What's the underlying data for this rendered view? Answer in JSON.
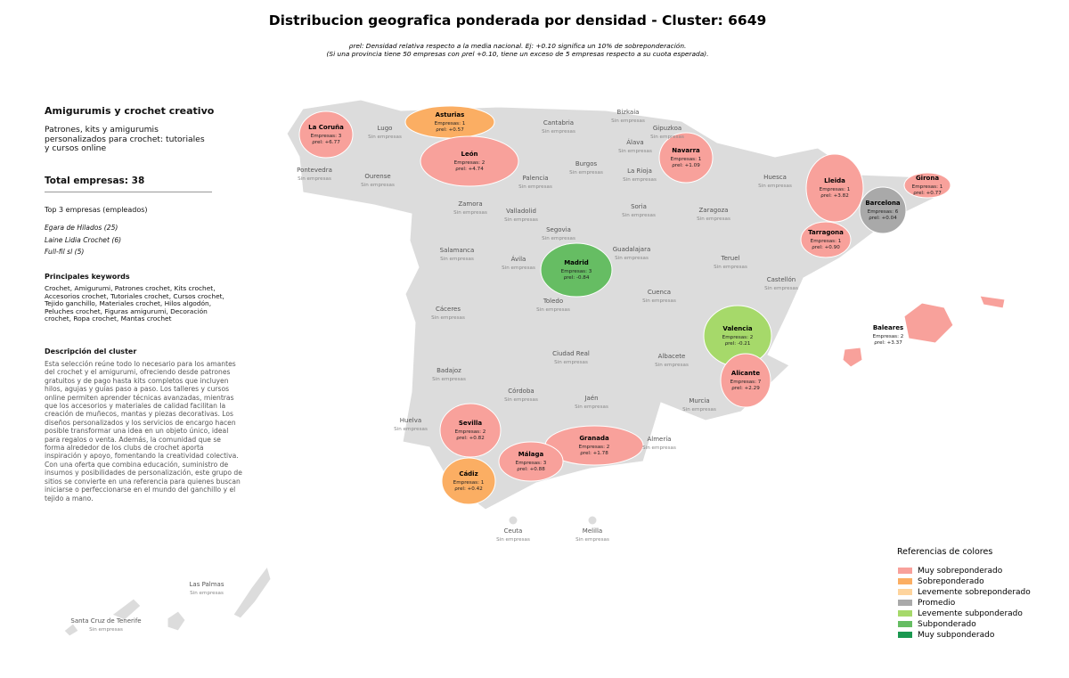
{
  "header": {
    "title": "Distribucion geografica ponderada por densidad - Cluster: 6649",
    "subtitle_lines": [
      "ρrel: Densidad relativa respecto a la media nacional. Ej: +0.10 significa un 10% de sobreponderación.",
      "(Si una provincia tiene 50 empresas con ρrel +0.10, tiene un exceso de 5 empresas respecto a su cuota esperada)."
    ]
  },
  "sidebar": {
    "cluster_name": "Amigurumis y crochet creativo",
    "cluster_summary": "Patrones, kits y amigurumis personalizados para crochet: tutoriales y cursos online",
    "total": "Total empresas: 38",
    "top_heading": "Top 3 empresas (empleados)",
    "top_companies": [
      "Egara de Hilados (25)",
      "Laine Lidia Crochet (6)",
      "Full-fil sl (5)"
    ],
    "keywords_heading": "Principales keywords",
    "keywords": "Crochet, Amigurumi, Patrones crochet, Kits crochet, Accesorios crochet, Tutoriales crochet, Cursos crochet, Tejido ganchillo, Materiales crochet, Hilos algodón, Peluches crochet, Figuras amigurumi, Decoración crochet, Ropa crochet, Mantas crochet",
    "description_heading": "Descripción del cluster",
    "description": "Esta selección reúne todo lo necesario para los amantes del crochet y el amigurumi, ofreciendo desde patrones gratuitos y de pago hasta kits completos que incluyen hilos, agujas y guías paso a paso. Los talleres y cursos online permiten aprender técnicas avanzadas, mientras que los accesorios y materiales de calidad facilitan la creación de muñecos, mantas y piezas decorativas. Los diseños personalizados y los servicios de encargo hacen posible transformar una idea en un objeto único, ideal para regalos o venta. Además, la comunidad que se forma alrededor de los clubs de crochet aporta inspiración y apoyo, fomentando la creatividad colectiva. Con una oferta que combina educación, suministro de insumos y posibilidades de personalización, este grupo de sitios se convierte en una referencia para quienes buscan iniciarse o perfeccionarse en el mundo del ganchillo y el tejido a mano."
  },
  "provinces": [
    {
      "name": "La Coruña",
      "companies": "Empresas: 3",
      "rho": "ρrel: +6.77",
      "color": "#f8a19b"
    },
    {
      "name": "Lugo",
      "companies": "Sin empresas"
    },
    {
      "name": "Asturias",
      "companies": "Empresas: 1",
      "rho": "ρrel: +0.57",
      "color": "#fbae63"
    },
    {
      "name": "Cantabria",
      "companies": "Sin empresas"
    },
    {
      "name": "Bizkaia",
      "companies": "Sin empresas"
    },
    {
      "name": "Gipuzkoa",
      "companies": "Sin empresas"
    },
    {
      "name": "Álava",
      "companies": "Sin empresas"
    },
    {
      "name": "Navarra",
      "companies": "Empresas: 1",
      "rho": "ρrel: +1.09",
      "color": "#f8a19b"
    },
    {
      "name": "Pontevedra",
      "companies": "Sin empresas"
    },
    {
      "name": "Ourense",
      "companies": "Sin empresas"
    },
    {
      "name": "León",
      "companies": "Empresas: 2",
      "rho": "ρrel: +4.74",
      "color": "#f8a19b"
    },
    {
      "name": "Palencia",
      "companies": "Sin empresas"
    },
    {
      "name": "Burgos",
      "companies": "Sin empresas"
    },
    {
      "name": "La Rioja",
      "companies": "Sin empresas"
    },
    {
      "name": "Huesca",
      "companies": "Sin empresas"
    },
    {
      "name": "Lleida",
      "companies": "Empresas: 1",
      "rho": "ρrel: +3.82",
      "color": "#f8a19b"
    },
    {
      "name": "Girona",
      "companies": "Empresas: 1",
      "rho": "ρrel: +0.77",
      "color": "#f8a19b"
    },
    {
      "name": "Barcelona",
      "companies": "Empresas: 6",
      "rho": "ρrel: +0.04",
      "color": "#a9a9a9"
    },
    {
      "name": "Tarragona",
      "companies": "Empresas: 1",
      "rho": "ρrel: +0.90",
      "color": "#f8a19b"
    },
    {
      "name": "Zamora",
      "companies": "Sin empresas"
    },
    {
      "name": "Valladolid",
      "companies": "Sin empresas"
    },
    {
      "name": "Soria",
      "companies": "Sin empresas"
    },
    {
      "name": "Zaragoza",
      "companies": "Sin empresas"
    },
    {
      "name": "Segovia",
      "companies": "Sin empresas"
    },
    {
      "name": "Salamanca",
      "companies": "Sin empresas"
    },
    {
      "name": "Ávila",
      "companies": "Sin empresas"
    },
    {
      "name": "Madrid",
      "companies": "Empresas: 3",
      "rho": "ρrel: -0.84",
      "color": "#66bd63"
    },
    {
      "name": "Guadalajara",
      "companies": "Sin empresas"
    },
    {
      "name": "Teruel",
      "companies": "Sin empresas"
    },
    {
      "name": "Castellón",
      "companies": "Sin empresas"
    },
    {
      "name": "Cuenca",
      "companies": "Sin empresas"
    },
    {
      "name": "Cáceres",
      "companies": "Sin empresas"
    },
    {
      "name": "Toledo",
      "companies": "Sin empresas"
    },
    {
      "name": "Valencia",
      "companies": "Empresas: 2",
      "rho": "ρrel: -0.21",
      "color": "#a6d96a"
    },
    {
      "name": "Baleares",
      "companies": "Empresas: 2",
      "rho": "ρrel: +3.37",
      "color": "#f8a19b"
    },
    {
      "name": "Ciudad Real",
      "companies": "Sin empresas"
    },
    {
      "name": "Albacete",
      "companies": "Sin empresas"
    },
    {
      "name": "Badajoz",
      "companies": "Sin empresas"
    },
    {
      "name": "Alicante",
      "companies": "Empresas: 7",
      "rho": "ρrel: +2.29",
      "color": "#f8a19b"
    },
    {
      "name": "Córdoba",
      "companies": "Sin empresas"
    },
    {
      "name": "Jaén",
      "companies": "Sin empresas"
    },
    {
      "name": "Murcia",
      "companies": "Sin empresas"
    },
    {
      "name": "Huelva",
      "companies": "Sin empresas"
    },
    {
      "name": "Sevilla",
      "companies": "Empresas: 2",
      "rho": "ρrel: +0.82",
      "color": "#f8a19b"
    },
    {
      "name": "Granada",
      "companies": "Empresas: 2",
      "rho": "ρrel: +1.78",
      "color": "#f8a19b"
    },
    {
      "name": "Almería",
      "companies": "Sin empresas"
    },
    {
      "name": "Málaga",
      "companies": "Empresas: 3",
      "rho": "ρrel: +0.88",
      "color": "#f8a19b"
    },
    {
      "name": "Cádiz",
      "companies": "Empresas: 1",
      "rho": "ρrel: +0.42",
      "color": "#fbae63"
    },
    {
      "name": "Ceuta",
      "companies": "Sin empresas"
    },
    {
      "name": "Melilla",
      "companies": "Sin empresas"
    },
    {
      "name": "Las Palmas",
      "companies": "Sin empresas"
    },
    {
      "name": "Santa Cruz de Tenerife",
      "companies": "Sin empresas"
    }
  ],
  "legend": {
    "title": "Referencias de colores",
    "items": [
      {
        "label": "Muy sobreponderado",
        "color": "#f8a19b"
      },
      {
        "label": "Sobreponderado",
        "color": "#fbae63"
      },
      {
        "label": "Levemente sobreponderado",
        "color": "#fed49d"
      },
      {
        "label": "Promedio",
        "color": "#a9a9a9"
      },
      {
        "label": "Levemente subponderado",
        "color": "#a6d96a"
      },
      {
        "label": "Subponderado",
        "color": "#66bd63"
      },
      {
        "label": "Muy subponderado",
        "color": "#1a9850"
      }
    ]
  }
}
